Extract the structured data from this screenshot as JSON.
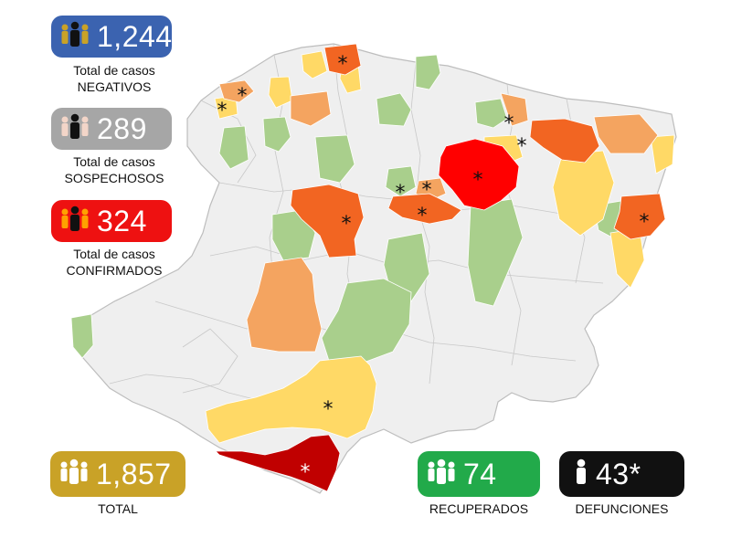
{
  "stats": {
    "negative": {
      "value": "1,244",
      "line1": "Total de casos",
      "line2": "NEGATIVOS",
      "color": "#3b63b0"
    },
    "suspect": {
      "value": "289",
      "line1": "Total de casos",
      "line2": "SOSPECHOSOS",
      "color": "#a6a6a6"
    },
    "confirmed": {
      "value": "324",
      "line1": "Total de casos",
      "line2": "CONFIRMADOS",
      "color": "#ee1111"
    },
    "total": {
      "value": "1,857",
      "label": "TOTAL",
      "color": "#c9a227"
    },
    "recovered": {
      "value": "74",
      "label": "RECUPERADOS",
      "color": "#22aa4a"
    },
    "deaths": {
      "value": "43*",
      "label": "DEFUNCIONES",
      "color": "#111111"
    }
  },
  "legend_colors": {
    "gray": "#efefef",
    "green": "#a9cf8c",
    "yellow": "#ffd966",
    "orange": "#f4a460",
    "dark_orange": "#f26522",
    "red": "#ff0000",
    "dark_red": "#c00000"
  },
  "map": {
    "marker": "*",
    "icon": "people-icon"
  }
}
